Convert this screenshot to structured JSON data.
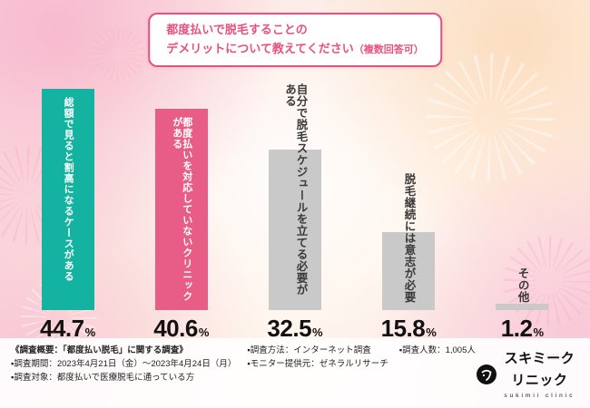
{
  "title": {
    "line1": "都度払いで脱毛することの",
    "line2": "デメリットについて教えてください",
    "line2_note": "（複数回答可）"
  },
  "chart_data": {
    "type": "bar",
    "title": "都度払いで脱毛することのデメリットについて教えてください（複数回答可）",
    "categories": [
      "総額で見ると割高になるケースがある",
      "都度払いを対応していないクリニックがある",
      "自分で脱毛スケジュールを立てる必要がある",
      "脱毛継続には意志が必要",
      "その他"
    ],
    "values": [
      44.7,
      40.6,
      32.5,
      15.8,
      1.2
    ],
    "ylim": [
      0,
      50
    ],
    "percent_sign": "%",
    "sample_note": "(n=1,005人)",
    "items": [
      {
        "label": "総額で見ると割高になるケースがある",
        "value": "44.7",
        "color": "#14b2a0",
        "label_position": "inside"
      },
      {
        "label": "都度払いを対応していないクリニックがある",
        "value": "40.6",
        "color": "#e85d85",
        "label_position": "inside"
      },
      {
        "label": "自分で脱毛スケジュールを立てる必要がある",
        "value": "32.5",
        "color": "#c9c9c9",
        "label_position": "outside"
      },
      {
        "label": "脱毛継続には意志が必要",
        "value": "15.8",
        "color": "#c9c9c9",
        "label_position": "outside"
      },
      {
        "label": "その他",
        "value": "1.2",
        "color": "#c9c9c9",
        "label_position": "outside"
      }
    ]
  },
  "footer": {
    "col1": [
      "《調査概要：「都度払い脱毛」に関する調査》",
      "▪調査期間：2023年4月21日（金）〜2023年4月24日（月）",
      "▪調査対象：都度払いで医療脱毛に通っている方"
    ],
    "col2": [
      "▪調査方法：インターネット調査",
      "▪モニター提供元：ゼネラルリサーチ"
    ],
    "col3": [
      "▪調査人数：1,005人"
    ],
    "logo_text": "スキミークリニック",
    "logo_subtext": "sukimii clinic"
  }
}
